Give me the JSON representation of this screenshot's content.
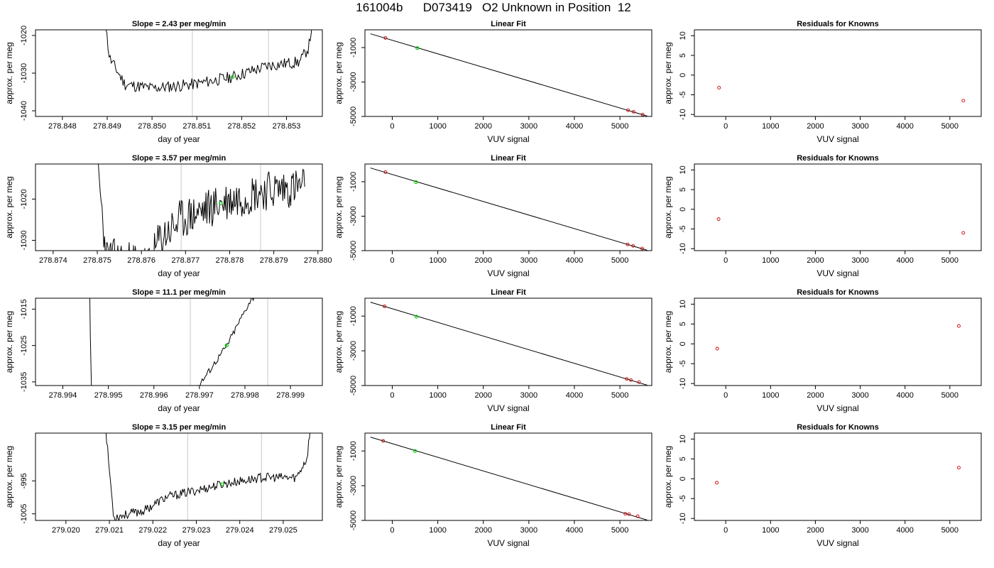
{
  "page_title": "161004b      D073419   O2 Unknown in Position  12",
  "chart_data": [
    {
      "type": "line",
      "row": 0,
      "col": 0,
      "title": "Slope =  2.43  per meg/min",
      "xlabel": "day of year",
      "ylabel": "approx. per meg",
      "xlim": [
        278.8474,
        278.8538
      ],
      "ylim": [
        -1041.5,
        -1018.5
      ],
      "xticks": [
        278.848,
        278.849,
        278.85,
        278.851,
        278.852,
        278.853
      ],
      "xtick_labels": [
        "278.848",
        "278.849",
        "278.850",
        "278.851",
        "278.852",
        "278.853"
      ],
      "yticks": [
        -1040,
        -1030,
        -1020
      ],
      "ytick_labels": [
        "-1040",
        "-1030",
        "-1020"
      ],
      "vlines": [
        278.8509,
        278.8526
      ],
      "green_point": [
        278.8518,
        -1031
      ],
      "trace": {
        "seed": 11,
        "x0": 278.84885,
        "x1": 278.85365,
        "anchors": [
          [
            278.84885,
            -1005
          ],
          [
            278.84905,
            -1026
          ],
          [
            278.8494,
            -1033
          ],
          [
            278.85,
            -1034
          ],
          [
            278.8509,
            -1033
          ],
          [
            278.8518,
            -1031
          ],
          [
            278.8526,
            -1028
          ],
          [
            278.8533,
            -1027
          ],
          [
            278.8535,
            -1023
          ],
          [
            278.85365,
            -1010
          ]
        ],
        "noise": 1.6,
        "n": 200
      }
    },
    {
      "type": "line",
      "row": 0,
      "col": 1,
      "title": "Linear Fit",
      "xlabel": "VUV signal",
      "ylabel": "approx. per meg",
      "xlim": [
        -600,
        5700
      ],
      "ylim": [
        -5000,
        30
      ],
      "xticks": [
        0,
        1000,
        2000,
        3000,
        4000,
        5000
      ],
      "xtick_labels": [
        "0",
        "1000",
        "2000",
        "3000",
        "4000",
        "5000"
      ],
      "yticks": [
        -5000,
        -3000,
        -1000
      ],
      "ytick_labels": [
        "-5000",
        "-3000",
        "-1000"
      ],
      "fit_line": [
        [
          -480,
          -200
        ],
        [
          5600,
          -4980
        ]
      ],
      "red_points": [
        [
          -150,
          -440
        ],
        [
          5180,
          -4640
        ],
        [
          5300,
          -4730
        ],
        [
          5500,
          -4890
        ]
      ],
      "green_point": [
        550,
        -1030
      ]
    },
    {
      "type": "scatter",
      "row": 0,
      "col": 2,
      "title": "Residuals for Knowns",
      "xlabel": "VUV signal",
      "ylabel": "approx. per meg",
      "xlim": [
        -700,
        5700
      ],
      "ylim": [
        -10.5,
        11.5
      ],
      "xticks": [
        0,
        1000,
        2000,
        3000,
        4000,
        5000
      ],
      "xtick_labels": [
        "0",
        "1000",
        "2000",
        "3000",
        "4000",
        "5000"
      ],
      "yticks": [
        -10,
        -5,
        0,
        5,
        10
      ],
      "ytick_labels": [
        "-10",
        "-5",
        "0",
        "5",
        "10"
      ],
      "red_points": [
        [
          -150,
          -3.2
        ],
        [
          5300,
          -6.5
        ]
      ]
    },
    {
      "type": "line",
      "row": 1,
      "col": 0,
      "title": "Slope =  3.57  per meg/min",
      "xlabel": "day of year",
      "ylabel": "approx. per meg",
      "xlim": [
        278.8736,
        278.8801
      ],
      "ylim": [
        -1032.5,
        -1011.5
      ],
      "xticks": [
        278.874,
        278.875,
        278.876,
        278.877,
        278.878,
        278.879,
        278.88
      ],
      "xtick_labels": [
        "278.874",
        "278.875",
        "278.876",
        "278.877",
        "278.878",
        "278.879",
        "278.880"
      ],
      "yticks": [
        -1030,
        -1020
      ],
      "ytick_labels": [
        "-1030",
        "-1020"
      ],
      "vlines": [
        278.8769,
        278.8787
      ],
      "green_point": [
        278.8778,
        -1021
      ],
      "trace": {
        "seed": 23,
        "x0": 278.87495,
        "x1": 278.8797,
        "anchors": [
          [
            278.87495,
            -1005
          ],
          [
            278.8752,
            -1034
          ],
          [
            278.8762,
            -1036
          ],
          [
            278.8764,
            -1030
          ],
          [
            278.8769,
            -1025
          ],
          [
            278.8778,
            -1021
          ],
          [
            278.8787,
            -1018
          ],
          [
            278.8797,
            -1017
          ]
        ],
        "noise": 5.0,
        "n": 240
      }
    },
    {
      "type": "line",
      "row": 1,
      "col": 1,
      "title": "Linear Fit",
      "xlabel": "VUV signal",
      "ylabel": "approx. per meg",
      "xlim": [
        -600,
        5700
      ],
      "ylim": [
        -5000,
        30
      ],
      "xticks": [
        0,
        1000,
        2000,
        3000,
        4000,
        5000
      ],
      "xtick_labels": [
        "0",
        "1000",
        "2000",
        "3000",
        "4000",
        "5000"
      ],
      "yticks": [
        -5000,
        -3000,
        -1000
      ],
      "ytick_labels": [
        "-5000",
        "-3000",
        "-1000"
      ],
      "fit_line": [
        [
          -480,
          -200
        ],
        [
          5600,
          -4980
        ]
      ],
      "red_points": [
        [
          -150,
          -440
        ],
        [
          5170,
          -4640
        ],
        [
          5290,
          -4720
        ],
        [
          5490,
          -4880
        ]
      ],
      "green_point": [
        520,
        -1020
      ]
    },
    {
      "type": "scatter",
      "row": 1,
      "col": 2,
      "title": "Residuals for Knowns",
      "xlabel": "VUV signal",
      "ylabel": "approx. per meg",
      "xlim": [
        -700,
        5700
      ],
      "ylim": [
        -10.5,
        11.5
      ],
      "xticks": [
        0,
        1000,
        2000,
        3000,
        4000,
        5000
      ],
      "xtick_labels": [
        "0",
        "1000",
        "2000",
        "3000",
        "4000",
        "5000"
      ],
      "yticks": [
        -10,
        -5,
        0,
        5,
        10
      ],
      "ytick_labels": [
        "-10",
        "-5",
        "0",
        "5",
        "10"
      ],
      "red_points": [
        [
          -160,
          -2.5
        ],
        [
          5300,
          -6.0
        ]
      ]
    },
    {
      "type": "line",
      "row": 2,
      "col": 0,
      "title": "Slope =  11.1  per meg/min",
      "xlabel": "day of year",
      "ylabel": "approx. per meg",
      "xlim": [
        278.9934,
        278.9997
      ],
      "ylim": [
        -1036,
        -1012
      ],
      "xticks": [
        278.994,
        278.995,
        278.996,
        278.997,
        278.998,
        278.999
      ],
      "xtick_labels": [
        "278.994",
        "278.995",
        "278.996",
        "278.997",
        "278.998",
        "278.999"
      ],
      "yticks": [
        -1035,
        -1025,
        -1015
      ],
      "ytick_labels": [
        "-1035",
        "-1025",
        "-1015"
      ],
      "vlines": [
        278.9968,
        278.9985
      ],
      "green_point": [
        278.9976,
        -1025
      ],
      "trace": {
        "seed": 37,
        "x0": 278.99458,
        "x1": 278.99823,
        "anchors": [
          [
            278.99458,
            -1000
          ],
          [
            278.99462,
            -1037
          ],
          [
            278.9969,
            -1037
          ],
          [
            278.9971,
            -1034
          ],
          [
            278.9976,
            -1025
          ],
          [
            278.9981,
            -1013
          ],
          [
            278.99823,
            -1011
          ]
        ],
        "noise": 0.9,
        "n": 150
      }
    },
    {
      "type": "line",
      "row": 2,
      "col": 1,
      "title": "Linear Fit",
      "xlabel": "VUV signal",
      "ylabel": "approx. per meg",
      "xlim": [
        -600,
        5700
      ],
      "ylim": [
        -5000,
        30
      ],
      "xticks": [
        0,
        1000,
        2000,
        3000,
        4000,
        5000
      ],
      "xtick_labels": [
        "0",
        "1000",
        "2000",
        "3000",
        "4000",
        "5000"
      ],
      "yticks": [
        -5000,
        -3000,
        -1000
      ],
      "ytick_labels": [
        "-5000",
        "-3000",
        "-1000"
      ],
      "fit_line": [
        [
          -480,
          -200
        ],
        [
          5600,
          -4980
        ]
      ],
      "red_points": [
        [
          -170,
          -440
        ],
        [
          5150,
          -4620
        ],
        [
          5240,
          -4680
        ],
        [
          5420,
          -4800
        ]
      ],
      "green_point": [
        530,
        -1030
      ]
    },
    {
      "type": "scatter",
      "row": 2,
      "col": 2,
      "title": "Residuals for Knowns",
      "xlabel": "VUV signal",
      "ylabel": "approx. per meg",
      "xlim": [
        -700,
        5700
      ],
      "ylim": [
        -10.5,
        11.5
      ],
      "xticks": [
        0,
        1000,
        2000,
        3000,
        4000,
        5000
      ],
      "xtick_labels": [
        "0",
        "1000",
        "2000",
        "3000",
        "4000",
        "5000"
      ],
      "yticks": [
        -10,
        -5,
        0,
        5,
        10
      ],
      "ytick_labels": [
        "-10",
        "-5",
        "0",
        "5",
        "10"
      ],
      "red_points": [
        [
          -190,
          -1.2
        ],
        [
          5200,
          4.5
        ]
      ]
    },
    {
      "type": "line",
      "row": 3,
      "col": 0,
      "title": "Slope =  3.15  per meg/min",
      "xlabel": "day of year",
      "ylabel": "approx. per meg",
      "xlim": [
        279.0193,
        279.0259
      ],
      "ylim": [
        -1007,
        -980.5
      ],
      "xticks": [
        279.02,
        279.021,
        279.022,
        279.023,
        279.024,
        279.025
      ],
      "xtick_labels": [
        "279.020",
        "279.021",
        "279.022",
        "279.023",
        "279.024",
        "279.025"
      ],
      "yticks": [
        -1005,
        -995
      ],
      "ytick_labels": [
        "-1005",
        "-995"
      ],
      "vlines": [
        279.0228,
        279.0245
      ],
      "green_point": [
        279.0236,
        -996
      ],
      "trace": {
        "seed": 53,
        "x0": 279.02085,
        "x1": 279.02565,
        "anchors": [
          [
            279.02085,
            -970
          ],
          [
            279.0211,
            -1006
          ],
          [
            279.0218,
            -1004
          ],
          [
            279.0223,
            -1000
          ],
          [
            279.0228,
            -998.5
          ],
          [
            279.0236,
            -996
          ],
          [
            279.0245,
            -994
          ],
          [
            279.0253,
            -994
          ],
          [
            279.02555,
            -988
          ],
          [
            279.02565,
            -975
          ]
        ],
        "noise": 1.4,
        "n": 220
      }
    },
    {
      "type": "line",
      "row": 3,
      "col": 1,
      "title": "Linear Fit",
      "xlabel": "VUV signal",
      "ylabel": "approx. per meg",
      "xlim": [
        -600,
        5700
      ],
      "ylim": [
        -5000,
        30
      ],
      "xticks": [
        0,
        1000,
        2000,
        3000,
        4000,
        5000
      ],
      "xtick_labels": [
        "0",
        "1000",
        "2000",
        "3000",
        "4000",
        "5000"
      ],
      "yticks": [
        -5000,
        -3000,
        -1000
      ],
      "ytick_labels": [
        "-5000",
        "-3000",
        "-1000"
      ],
      "fit_line": [
        [
          -480,
          -200
        ],
        [
          5600,
          -4980
        ]
      ],
      "red_points": [
        [
          -200,
          -420
        ],
        [
          5120,
          -4620
        ],
        [
          5200,
          -4640
        ],
        [
          5390,
          -4760
        ]
      ],
      "green_point": [
        500,
        -1000
      ]
    },
    {
      "type": "scatter",
      "row": 3,
      "col": 2,
      "title": "Residuals for Knowns",
      "xlabel": "VUV signal",
      "ylabel": "approx. per meg",
      "xlim": [
        -700,
        5700
      ],
      "ylim": [
        -10.5,
        11.5
      ],
      "xticks": [
        0,
        1000,
        2000,
        3000,
        4000,
        5000
      ],
      "xtick_labels": [
        "0",
        "1000",
        "2000",
        "3000",
        "4000",
        "5000"
      ],
      "yticks": [
        -10,
        -5,
        0,
        5,
        10
      ],
      "ytick_labels": [
        "-10",
        "-5",
        "0",
        "5",
        "10"
      ],
      "red_points": [
        [
          -200,
          -1.0
        ],
        [
          5200,
          2.8
        ]
      ]
    }
  ],
  "colors": {
    "trace": "#000000",
    "vline": "#c8c8c8",
    "known_point": "#cc0000",
    "unknown_point": "#00cc00",
    "fit_line": "#000000"
  }
}
